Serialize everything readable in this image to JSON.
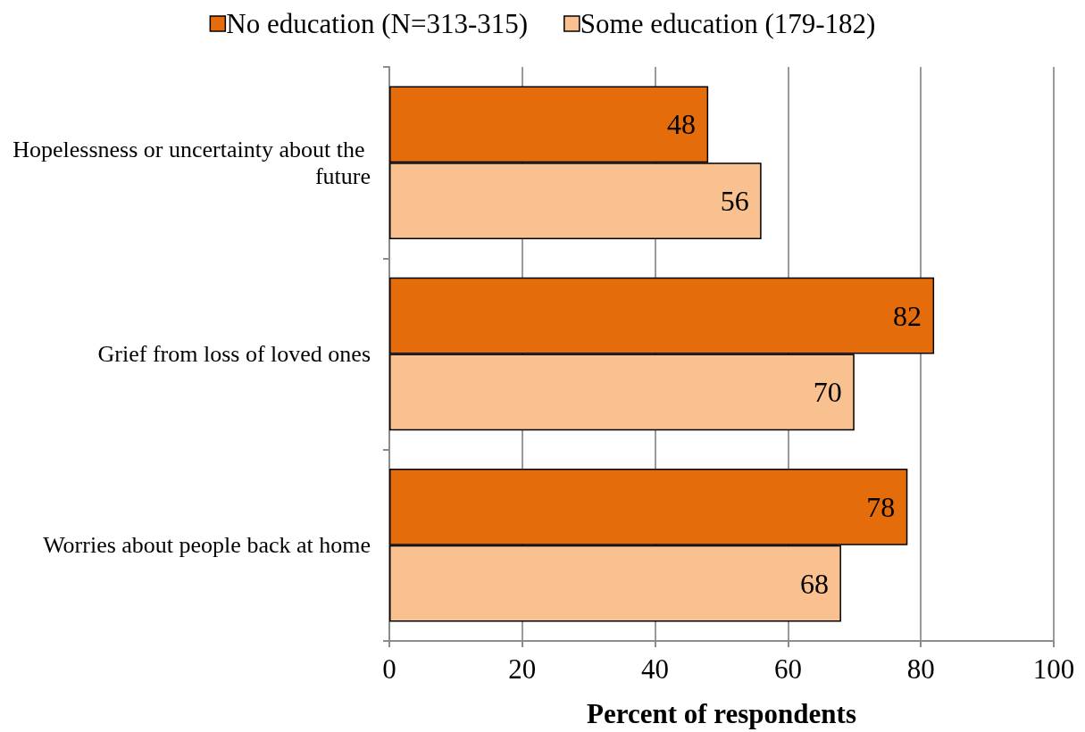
{
  "chart_data": {
    "type": "bar",
    "orientation": "horizontal",
    "categories": [
      "Hopelessness or uncertainty about the future",
      "Grief from loss of loved ones",
      "Worries about people back at home"
    ],
    "series": [
      {
        "name": "No education (N=313-315)",
        "color": "#e46c0a",
        "values": [
          48,
          82,
          78
        ]
      },
      {
        "name": "Some education (179-182)",
        "color": "#f9c090",
        "values": [
          56,
          70,
          68
        ]
      }
    ],
    "xlabel": "Percent of respondents",
    "xlim": [
      0,
      100
    ],
    "xticks": [
      0,
      20,
      40,
      60,
      80,
      100
    ],
    "grid": "x",
    "legend": "top",
    "data_labels": true
  }
}
